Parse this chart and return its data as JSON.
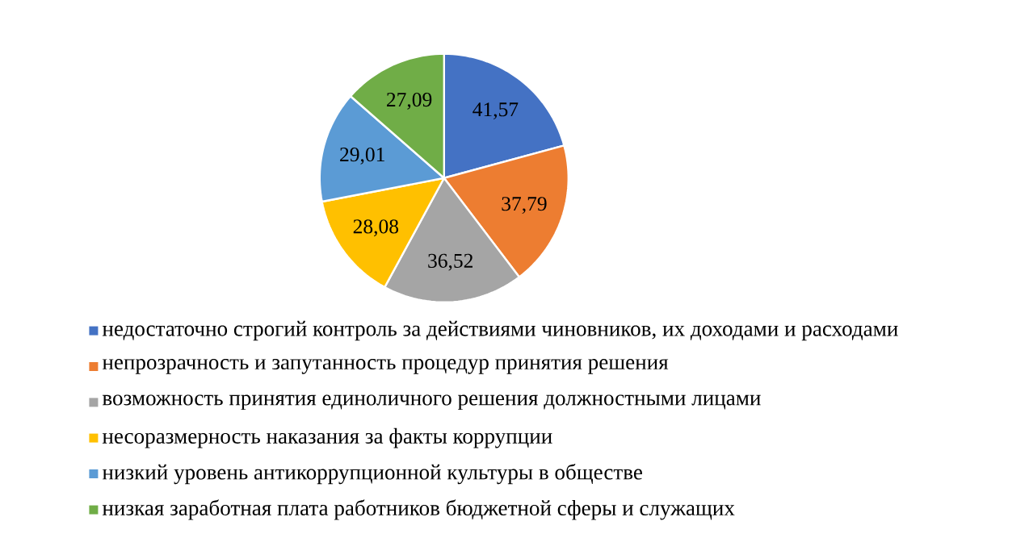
{
  "chart_data": {
    "type": "pie",
    "categories": [
      "недостаточно строгий контроль за действиями чиновников, их доходами и расходами",
      "непрозрачность и запутанность процедур принятия решения",
      "возможность принятия единоличного решения должностными лицами",
      "несоразмерность наказания за факты коррупции",
      "низкий уровень антикоррупционной культуры в обществе",
      "низкая заработная плата работников бюджетной сферы и служащих"
    ],
    "values": [
      41.57,
      37.79,
      36.52,
      28.08,
      29.01,
      27.09
    ],
    "value_labels": [
      "41,57",
      "37,79",
      "36,52",
      "28,08",
      "29,01",
      "27,09"
    ],
    "colors": [
      "#4472c4",
      "#ed7d31",
      "#a5a5a5",
      "#ffc000",
      "#5b9bd5",
      "#70ad47"
    ],
    "legend": "bottom"
  }
}
